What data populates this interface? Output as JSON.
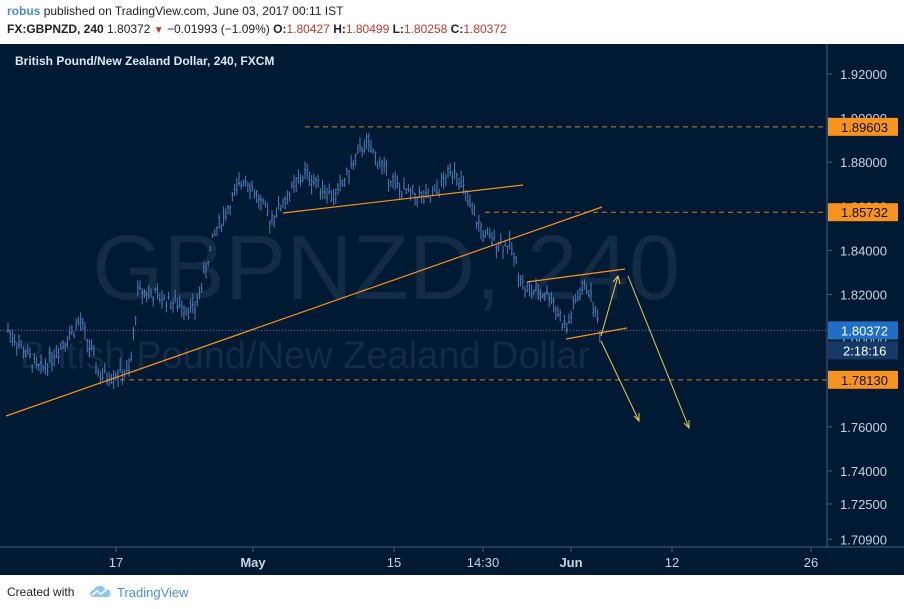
{
  "header": {
    "author": "robus",
    "published_text": "published on TradingView.com, June 03, 2017 00:11 IST",
    "symbol": "FX:GBPNZD, 240",
    "last": "1.80372",
    "change": "−0.01993 (−1.09%)",
    "o_label": "O:",
    "o_value": "1.80427",
    "h_label": "H:",
    "h_value": "1.80499",
    "l_label": "L:",
    "l_value": "1.80258",
    "c_label": "C:",
    "c_value": "1.80372"
  },
  "chart_data": {
    "type": "bar",
    "title": "British Pound/New Zealand Dollar, 240, FXCM",
    "watermark_symbol": "GBPNZD, 240",
    "watermark_name": "British Pound/New Zealand Dollar",
    "y_ticks": [
      "1.92000",
      "1.90000",
      "1.88000",
      "1.86000",
      "1.84000",
      "1.82000",
      "1.80000",
      "1.78000",
      "1.76000",
      "1.74000",
      "1.72500",
      "1.70900"
    ],
    "ylim": [
      1.709,
      1.929
    ],
    "x_ticks": [
      "17",
      "May",
      "15",
      "14:30",
      "Jun",
      "12",
      "26"
    ],
    "current_price": "1.80372",
    "countdown": "2:18:16",
    "price_labels": [
      {
        "value": "1.89603",
        "color": "#f7931e"
      },
      {
        "value": "1.85732",
        "color": "#f7931e"
      },
      {
        "value": "1.78130",
        "color": "#f7931e"
      }
    ],
    "horizontal_levels": [
      1.89603,
      1.85732,
      1.7813
    ],
    "colors": {
      "background": "#001a33",
      "candles": "#4f7bb5",
      "trendlines": "#f7931e",
      "arrows": "#f2c94c",
      "axis_text": "#c8d3e0"
    }
  },
  "footer": {
    "created_with": "Created with",
    "brand": "TradingView"
  }
}
